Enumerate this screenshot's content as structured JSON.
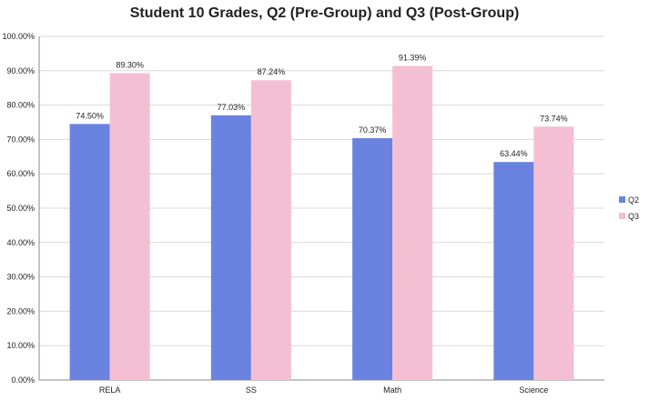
{
  "chart_data": {
    "type": "bar",
    "title": "Student 10 Grades, Q2 (Pre-Group) and Q3 (Post-Group)",
    "categories": [
      "RELA",
      "SS",
      "Math",
      "Science"
    ],
    "series": [
      {
        "name": "Q2",
        "values": [
          74.5,
          77.03,
          70.37,
          63.44
        ],
        "labels": [
          "74.50%",
          "77.03%",
          "70.37%",
          "63.44%"
        ],
        "color": "#6a82e0"
      },
      {
        "name": "Q3",
        "values": [
          89.3,
          87.24,
          91.39,
          73.74
        ],
        "labels": [
          "89.30%",
          "87.24%",
          "91.39%",
          "73.74%"
        ],
        "color": "#f4bfd3"
      }
    ],
    "ylim": [
      0,
      100
    ],
    "yticks": [
      "0.00%",
      "10.00%",
      "20.00%",
      "30.00%",
      "40.00%",
      "50.00%",
      "60.00%",
      "70.00%",
      "80.00%",
      "90.00%",
      "100.00%"
    ],
    "grid": true,
    "legend_position": "right",
    "xlabel": "",
    "ylabel": ""
  }
}
